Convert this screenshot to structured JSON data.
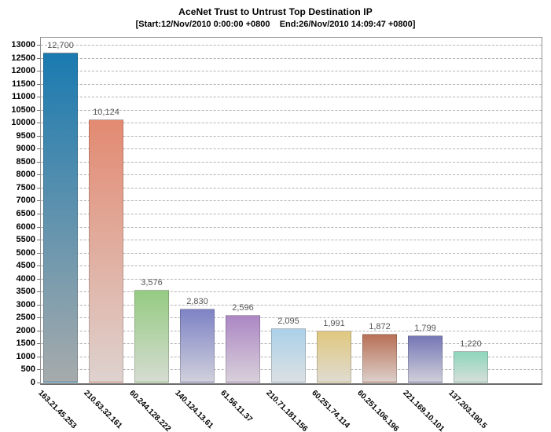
{
  "chart_data": {
    "type": "bar",
    "title": "AceNet Trust to Untrust Top Destination IP",
    "subtitle": "[Start:12/Nov/2010 0:00:00 +0800    End:26/Nov/2010 14:09:47 +0800]",
    "categories": [
      "163.21.45.253",
      "210.63.32.161",
      "60.244.128.222",
      "140.124.13.61",
      "61.56.11.37",
      "210.71.181.156",
      "60.251.74.114",
      "60.251.106.196",
      "221.169.10.101",
      "137.203.190.5"
    ],
    "values": [
      12700,
      10124,
      3576,
      2830,
      2596,
      2095,
      1991,
      1872,
      1799,
      1220
    ],
    "value_labels": [
      "12,700",
      "10,124",
      "3,576",
      "2,830",
      "2,596",
      "2,095",
      "1,991",
      "1,872",
      "1,799",
      "1,220"
    ],
    "xlabel": "",
    "ylabel": "",
    "ylim": [
      0,
      13000
    ],
    "ytick_step": 500,
    "grid": "horizontal-dashed",
    "legend": "none",
    "bar_styles": [
      {
        "color": "#1a7ab0",
        "fade": "#a6abac"
      },
      {
        "color": "#e38a71",
        "fade": "#ded2cf"
      },
      {
        "color": "#95cb82",
        "fade": "#d5dcd1"
      },
      {
        "color": "#7e83c5",
        "fade": "#d0d0dc"
      },
      {
        "color": "#ac87c4",
        "fade": "#d8d0da"
      },
      {
        "color": "#abd1e9",
        "fade": "#dbe0e3"
      },
      {
        "color": "#e0c87f",
        "fade": "#dfdbd0"
      },
      {
        "color": "#b87056",
        "fade": "#dccfca"
      },
      {
        "color": "#7577b6",
        "fade": "#cfceda"
      },
      {
        "color": "#8fd6bd",
        "fade": "#d5dfda"
      }
    ],
    "colors": {
      "grid": "#b3b3b3",
      "plot_border": "#919191",
      "baseline": "#6b6b6b",
      "value_label": "#555555",
      "axis_text": "#000000",
      "background": "#ffffff"
    }
  }
}
